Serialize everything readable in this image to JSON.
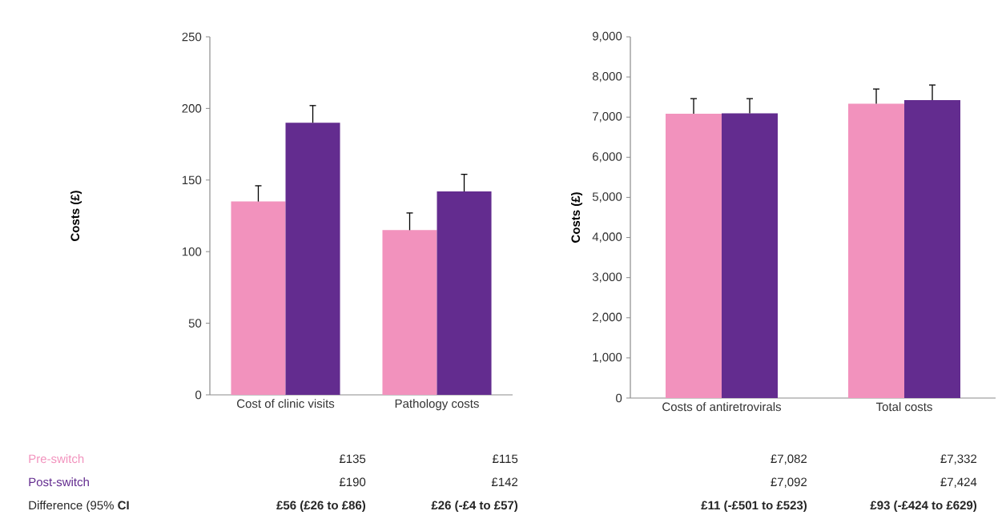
{
  "chart_data": [
    {
      "type": "bar",
      "categories": [
        "Cost of clinic visits",
        "Pathology costs"
      ],
      "ylabel": "Costs (£)",
      "ylim": [
        0,
        250
      ],
      "yticks": [
        0,
        50,
        100,
        150,
        200,
        250
      ],
      "series": [
        {
          "name": "Pre-switch",
          "color": "#f292bd",
          "values": [
            135,
            115
          ],
          "errors": [
            [
              135,
              146
            ],
            [
              115,
              127
            ]
          ],
          "value_labels": [
            "£135",
            "£115"
          ]
        },
        {
          "name": "Post-switch",
          "color": "#632c8f",
          "values": [
            190,
            142
          ],
          "errors": [
            [
              190,
              202
            ],
            [
              142,
              154
            ]
          ],
          "value_labels": [
            "£190",
            "£142"
          ]
        }
      ],
      "annotations": [
        "Difference (95% **CI**",
        "£56 (£26 to £86)",
        "£26 (-£4 to £57)"
      ]
    },
    {
      "type": "bar",
      "categories": [
        "Costs of antiretrovirals",
        "Total costs"
      ],
      "ylabel": "Costs (£)",
      "ylim": [
        0,
        9000
      ],
      "yticks": [
        {
          "value": 0,
          "label": "0"
        },
        {
          "value": 1000,
          "label": "1,000"
        },
        {
          "value": 2000,
          "label": "2,000"
        },
        {
          "value": 3000,
          "label": "3,000"
        },
        {
          "value": 4000,
          "label": "4,000"
        },
        {
          "value": 5000,
          "label": "5,000"
        },
        {
          "value": 6000,
          "label": "6,000"
        },
        {
          "value": 7000,
          "label": "7,000"
        },
        {
          "value": 8000,
          "label": "8,000"
        },
        {
          "value": 9000,
          "label": "9,000"
        }
      ],
      "series": [
        {
          "color": "#f292bd",
          "values": [
            7082,
            7332
          ],
          "errors": [
            [
              7082,
              7460
            ],
            [
              7332,
              7700
            ]
          ],
          "value_labels": [
            "£7,082",
            "£7,332"
          ]
        },
        {
          "color": "#632c8f",
          "values": [
            7092,
            7424
          ],
          "errors": [
            [
              7092,
              7460
            ],
            [
              7424,
              7800
            ]
          ],
          "value_labels": [
            "£7,092",
            "£7,424"
          ]
        }
      ],
      "annotations": [
        "£11 (-£501 to £523)",
        "£93 (-£424 to £629)"
      ]
    }
  ]
}
